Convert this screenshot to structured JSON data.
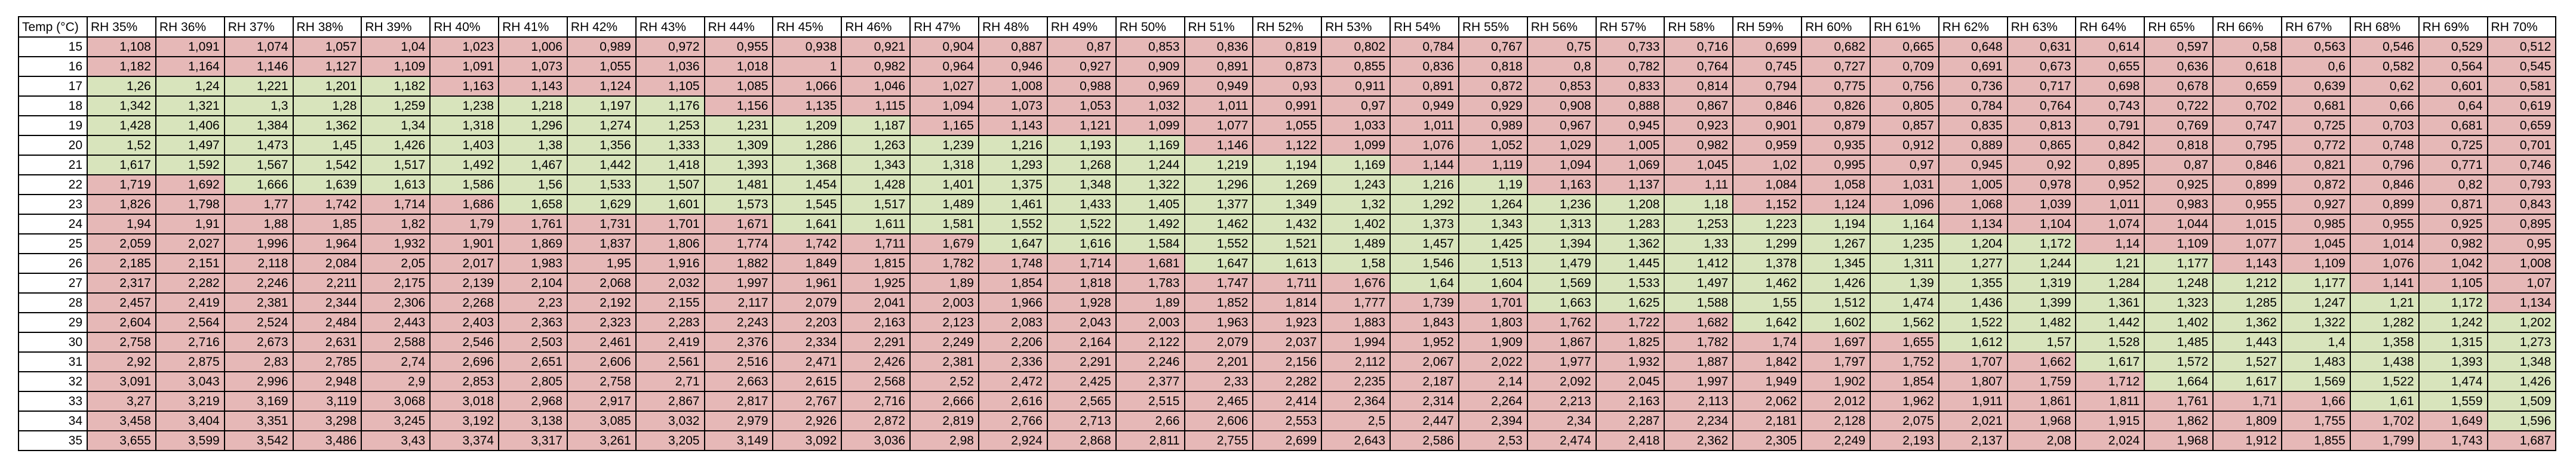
{
  "table": {
    "corner_header": "Temp (°C)",
    "temps": [
      "15",
      "16",
      "17",
      "18",
      "19",
      "20",
      "21",
      "22",
      "23",
      "24",
      "25",
      "26",
      "27",
      "28",
      "29",
      "30",
      "31",
      "32",
      "33",
      "34",
      "35"
    ],
    "columns": [
      {
        "rh": 35,
        "label": "RH 35%",
        "values": [
          "1,108",
          "1,182",
          "1,26",
          "1,342",
          "1,428",
          "1,52",
          "1,617",
          "1,719",
          "1,826",
          "1,94",
          "2,059",
          "2,185",
          "2,317",
          "2,457",
          "2,604",
          "2,758",
          "2,92",
          "3,091",
          "3,27",
          "3,458",
          "3,655"
        ]
      },
      {
        "rh": 36,
        "label": "RH 36%",
        "values": [
          "1,091",
          "1,164",
          "1,24",
          "1,321",
          "1,406",
          "1,497",
          "1,592",
          "1,692",
          "1,798",
          "1,91",
          "2,027",
          "2,151",
          "2,282",
          "2,419",
          "2,564",
          "2,716",
          "2,875",
          "3,043",
          "3,219",
          "3,404",
          "3,599"
        ]
      },
      {
        "rh": 37,
        "label": "RH 37%",
        "values": [
          "1,074",
          "1,146",
          "1,221",
          "1,3",
          "1,384",
          "1,473",
          "1,567",
          "1,666",
          "1,77",
          "1,88",
          "1,996",
          "2,118",
          "2,246",
          "2,381",
          "2,524",
          "2,673",
          "2,83",
          "2,996",
          "3,169",
          "3,351",
          "3,542"
        ]
      },
      {
        "rh": 38,
        "label": "RH 38%",
        "values": [
          "1,057",
          "1,127",
          "1,201",
          "1,28",
          "1,362",
          "1,45",
          "1,542",
          "1,639",
          "1,742",
          "1,85",
          "1,964",
          "2,084",
          "2,211",
          "2,344",
          "2,484",
          "2,631",
          "2,785",
          "2,948",
          "3,119",
          "3,298",
          "3,486"
        ]
      },
      {
        "rh": 39,
        "label": "RH 39%",
        "values": [
          "1,04",
          "1,109",
          "1,182",
          "1,259",
          "1,34",
          "1,426",
          "1,517",
          "1,613",
          "1,714",
          "1,82",
          "1,932",
          "2,05",
          "2,175",
          "2,306",
          "2,443",
          "2,588",
          "2,74",
          "2,9",
          "3,068",
          "3,245",
          "3,43"
        ]
      },
      {
        "rh": 40,
        "label": "RH 40%",
        "values": [
          "1,023",
          "1,091",
          "1,163",
          "1,238",
          "1,318",
          "1,403",
          "1,492",
          "1,586",
          "1,686",
          "1,79",
          "1,901",
          "2,017",
          "2,139",
          "2,268",
          "2,403",
          "2,546",
          "2,696",
          "2,853",
          "3,018",
          "3,192",
          "3,374"
        ]
      },
      {
        "rh": 41,
        "label": "RH 41%",
        "values": [
          "1,006",
          "1,073",
          "1,143",
          "1,218",
          "1,296",
          "1,38",
          "1,467",
          "1,56",
          "1,658",
          "1,761",
          "1,869",
          "1,983",
          "2,104",
          "2,23",
          "2,363",
          "2,503",
          "2,651",
          "2,805",
          "2,968",
          "3,138",
          "3,317"
        ]
      },
      {
        "rh": 42,
        "label": "RH 42%",
        "values": [
          "0,989",
          "1,055",
          "1,124",
          "1,197",
          "1,274",
          "1,356",
          "1,442",
          "1,533",
          "1,629",
          "1,731",
          "1,837",
          "1,95",
          "2,068",
          "2,192",
          "2,323",
          "2,461",
          "2,606",
          "2,758",
          "2,917",
          "3,085",
          "3,261"
        ]
      },
      {
        "rh": 43,
        "label": "RH 43%",
        "values": [
          "0,972",
          "1,036",
          "1,105",
          "1,176",
          "1,253",
          "1,333",
          "1,418",
          "1,507",
          "1,601",
          "1,701",
          "1,806",
          "1,916",
          "2,032",
          "2,155",
          "2,283",
          "2,419",
          "2,561",
          "2,71",
          "2,867",
          "3,032",
          "3,205"
        ]
      },
      {
        "rh": 44,
        "label": "RH 44%",
        "values": [
          "0,955",
          "1,018",
          "1,085",
          "1,156",
          "1,231",
          "1,309",
          "1,393",
          "1,481",
          "1,573",
          "1,671",
          "1,774",
          "1,882",
          "1,997",
          "2,117",
          "2,243",
          "2,376",
          "2,516",
          "2,663",
          "2,817",
          "2,979",
          "3,149"
        ]
      },
      {
        "rh": 45,
        "label": "RH 45%",
        "values": [
          "0,938",
          "1",
          "1,066",
          "1,135",
          "1,209",
          "1,286",
          "1,368",
          "1,454",
          "1,545",
          "1,641",
          "1,742",
          "1,849",
          "1,961",
          "2,079",
          "2,203",
          "2,334",
          "2,471",
          "2,615",
          "2,767",
          "2,926",
          "3,092"
        ]
      },
      {
        "rh": 46,
        "label": "RH 46%",
        "values": [
          "0,921",
          "0,982",
          "1,046",
          "1,115",
          "1,187",
          "1,263",
          "1,343",
          "1,428",
          "1,517",
          "1,611",
          "1,711",
          "1,815",
          "1,925",
          "2,041",
          "2,163",
          "2,291",
          "2,426",
          "2,568",
          "2,716",
          "2,872",
          "3,036"
        ]
      },
      {
        "rh": 47,
        "label": "RH 47%",
        "values": [
          "0,904",
          "0,964",
          "1,027",
          "1,094",
          "1,165",
          "1,239",
          "1,318",
          "1,401",
          "1,489",
          "1,581",
          "1,679",
          "1,782",
          "1,89",
          "2,003",
          "2,123",
          "2,249",
          "2,381",
          "2,52",
          "2,666",
          "2,819",
          "2,98"
        ]
      },
      {
        "rh": 48,
        "label": "RH 48%",
        "values": [
          "0,887",
          "0,946",
          "1,008",
          "1,073",
          "1,143",
          "1,216",
          "1,293",
          "1,375",
          "1,461",
          "1,552",
          "1,647",
          "1,748",
          "1,854",
          "1,966",
          "2,083",
          "2,206",
          "2,336",
          "2,472",
          "2,616",
          "2,766",
          "2,924"
        ]
      },
      {
        "rh": 49,
        "label": "RH 49%",
        "values": [
          "0,87",
          "0,927",
          "0,988",
          "1,053",
          "1,121",
          "1,193",
          "1,268",
          "1,348",
          "1,433",
          "1,522",
          "1,616",
          "1,714",
          "1,818",
          "1,928",
          "2,043",
          "2,164",
          "2,291",
          "2,425",
          "2,565",
          "2,713",
          "2,868"
        ]
      },
      {
        "rh": 50,
        "label": "RH 50%",
        "values": [
          "0,853",
          "0,909",
          "0,969",
          "1,032",
          "1,099",
          "1,169",
          "1,244",
          "1,322",
          "1,405",
          "1,492",
          "1,584",
          "1,681",
          "1,783",
          "1,89",
          "2,003",
          "2,122",
          "2,246",
          "2,377",
          "2,515",
          "2,66",
          "2,811"
        ]
      },
      {
        "rh": 51,
        "label": "RH 51%",
        "values": [
          "0,836",
          "0,891",
          "0,949",
          "1,011",
          "1,077",
          "1,146",
          "1,219",
          "1,296",
          "1,377",
          "1,462",
          "1,552",
          "1,647",
          "1,747",
          "1,852",
          "1,963",
          "2,079",
          "2,201",
          "2,33",
          "2,465",
          "2,606",
          "2,755"
        ]
      },
      {
        "rh": 52,
        "label": "RH 52%",
        "values": [
          "0,819",
          "0,873",
          "0,93",
          "0,991",
          "1,055",
          "1,122",
          "1,194",
          "1,269",
          "1,349",
          "1,432",
          "1,521",
          "1,613",
          "1,711",
          "1,814",
          "1,923",
          "2,037",
          "2,156",
          "2,282",
          "2,414",
          "2,553",
          "2,699"
        ]
      },
      {
        "rh": 53,
        "label": "RH 53%",
        "values": [
          "0,802",
          "0,855",
          "0,911",
          "0,97",
          "1,033",
          "1,099",
          "1,169",
          "1,243",
          "1,32",
          "1,402",
          "1,489",
          "1,58",
          "1,676",
          "1,777",
          "1,883",
          "1,994",
          "2,112",
          "2,235",
          "2,364",
          "2,5",
          "2,643"
        ]
      },
      {
        "rh": 54,
        "label": "RH 54%",
        "values": [
          "0,784",
          "0,836",
          "0,891",
          "0,949",
          "1,011",
          "1,076",
          "1,144",
          "1,216",
          "1,292",
          "1,373",
          "1,457",
          "1,546",
          "1,64",
          "1,739",
          "1,843",
          "1,952",
          "2,067",
          "2,187",
          "2,314",
          "2,447",
          "2,586"
        ]
      },
      {
        "rh": 55,
        "label": "RH 55%",
        "values": [
          "0,767",
          "0,818",
          "0,872",
          "0,929",
          "0,989",
          "1,052",
          "1,119",
          "1,19",
          "1,264",
          "1,343",
          "1,425",
          "1,513",
          "1,604",
          "1,701",
          "1,803",
          "1,909",
          "2,022",
          "2,14",
          "2,264",
          "2,394",
          "2,53"
        ]
      },
      {
        "rh": 56,
        "label": "RH 56%",
        "values": [
          "0,75",
          "0,8",
          "0,853",
          "0,908",
          "0,967",
          "1,029",
          "1,094",
          "1,163",
          "1,236",
          "1,313",
          "1,394",
          "1,479",
          "1,569",
          "1,663",
          "1,762",
          "1,867",
          "1,977",
          "2,092",
          "2,213",
          "2,34",
          "2,474"
        ]
      },
      {
        "rh": 57,
        "label": "RH 57%",
        "values": [
          "0,733",
          "0,782",
          "0,833",
          "0,888",
          "0,945",
          "1,005",
          "1,069",
          "1,137",
          "1,208",
          "1,283",
          "1,362",
          "1,445",
          "1,533",
          "1,625",
          "1,722",
          "1,825",
          "1,932",
          "2,045",
          "2,163",
          "2,287",
          "2,418"
        ]
      },
      {
        "rh": 58,
        "label": "RH 58%",
        "values": [
          "0,716",
          "0,764",
          "0,814",
          "0,867",
          "0,923",
          "0,982",
          "1,045",
          "1,11",
          "1,18",
          "1,253",
          "1,33",
          "1,412",
          "1,497",
          "1,588",
          "1,682",
          "1,782",
          "1,887",
          "1,997",
          "2,113",
          "2,234",
          "2,362"
        ]
      },
      {
        "rh": 59,
        "label": "RH 59%",
        "values": [
          "0,699",
          "0,745",
          "0,794",
          "0,846",
          "0,901",
          "0,959",
          "1,02",
          "1,084",
          "1,152",
          "1,223",
          "1,299",
          "1,378",
          "1,462",
          "1,55",
          "1,642",
          "1,74",
          "1,842",
          "1,949",
          "2,062",
          "2,181",
          "2,305"
        ]
      },
      {
        "rh": 60,
        "label": "RH 60%",
        "values": [
          "0,682",
          "0,727",
          "0,775",
          "0,826",
          "0,879",
          "0,935",
          "0,995",
          "1,058",
          "1,124",
          "1,194",
          "1,267",
          "1,345",
          "1,426",
          "1,512",
          "1,602",
          "1,697",
          "1,797",
          "1,902",
          "2,012",
          "2,128",
          "2,249"
        ]
      },
      {
        "rh": 61,
        "label": "RH 61%",
        "values": [
          "0,665",
          "0,709",
          "0,756",
          "0,805",
          "0,857",
          "0,912",
          "0,97",
          "1,031",
          "1,096",
          "1,164",
          "1,235",
          "1,311",
          "1,39",
          "1,474",
          "1,562",
          "1,655",
          "1,752",
          "1,854",
          "1,962",
          "2,075",
          "2,193"
        ]
      },
      {
        "rh": 62,
        "label": "RH 62%",
        "values": [
          "0,648",
          "0,691",
          "0,736",
          "0,784",
          "0,835",
          "0,889",
          "0,945",
          "1,005",
          "1,068",
          "1,134",
          "1,204",
          "1,277",
          "1,355",
          "1,436",
          "1,522",
          "1,612",
          "1,707",
          "1,807",
          "1,911",
          "2,021",
          "2,137"
        ]
      },
      {
        "rh": 63,
        "label": "RH 63%",
        "values": [
          "0,631",
          "0,673",
          "0,717",
          "0,764",
          "0,813",
          "0,865",
          "0,92",
          "0,978",
          "1,039",
          "1,104",
          "1,172",
          "1,244",
          "1,319",
          "1,399",
          "1,482",
          "1,57",
          "1,662",
          "1,759",
          "1,861",
          "1,968",
          "2,08"
        ]
      },
      {
        "rh": 64,
        "label": "RH 64%",
        "values": [
          "0,614",
          "0,655",
          "0,698",
          "0,743",
          "0,791",
          "0,842",
          "0,895",
          "0,952",
          "1,011",
          "1,074",
          "1,14",
          "1,21",
          "1,284",
          "1,361",
          "1,442",
          "1,528",
          "1,617",
          "1,712",
          "1,811",
          "1,915",
          "2,024"
        ]
      },
      {
        "rh": 65,
        "label": "RH 65%",
        "values": [
          "0,597",
          "0,636",
          "0,678",
          "0,722",
          "0,769",
          "0,818",
          "0,87",
          "0,925",
          "0,983",
          "1,044",
          "1,109",
          "1,177",
          "1,248",
          "1,323",
          "1,402",
          "1,485",
          "1,572",
          "1,664",
          "1,761",
          "1,862",
          "1,968"
        ]
      },
      {
        "rh": 66,
        "label": "RH 66%",
        "values": [
          "0,58",
          "0,618",
          "0,659",
          "0,702",
          "0,747",
          "0,795",
          "0,846",
          "0,899",
          "0,955",
          "1,015",
          "1,077",
          "1,143",
          "1,212",
          "1,285",
          "1,362",
          "1,443",
          "1,527",
          "1,617",
          "1,71",
          "1,809",
          "1,912"
        ]
      },
      {
        "rh": 67,
        "label": "RH 67%",
        "values": [
          "0,563",
          "0,6",
          "0,639",
          "0,681",
          "0,725",
          "0,772",
          "0,821",
          "0,872",
          "0,927",
          "0,985",
          "1,045",
          "1,109",
          "1,177",
          "1,247",
          "1,322",
          "1,4",
          "1,483",
          "1,569",
          "1,66",
          "1,755",
          "1,855"
        ]
      },
      {
        "rh": 68,
        "label": "RH 68%",
        "values": [
          "0,546",
          "0,582",
          "0,62",
          "0,66",
          "0,703",
          "0,748",
          "0,796",
          "0,846",
          "0,899",
          "0,955",
          "1,014",
          "1,076",
          "1,141",
          "1,21",
          "1,282",
          "1,358",
          "1,438",
          "1,522",
          "1,61",
          "1,702",
          "1,799"
        ]
      },
      {
        "rh": 69,
        "label": "RH 69%",
        "values": [
          "0,529",
          "0,564",
          "0,601",
          "0,64",
          "0,681",
          "0,725",
          "0,771",
          "0,82",
          "0,871",
          "0,925",
          "0,982",
          "1,042",
          "1,105",
          "1,172",
          "1,242",
          "1,315",
          "1,393",
          "1,474",
          "1,559",
          "1,649",
          "1,743"
        ]
      },
      {
        "rh": 70,
        "label": "RH 70%",
        "values": [
          "0,512",
          "0,545",
          "0,581",
          "0,619",
          "0,659",
          "0,701",
          "0,746",
          "0,793",
          "0,843",
          "0,895",
          "0,95",
          "1,008",
          "1,07",
          "1,134",
          "1,202",
          "1,273",
          "1,348",
          "1,426",
          "1,509",
          "1,596",
          "1,687"
        ]
      }
    ],
    "highlight": {
      "in_range_color": "#d8e4bc",
      "out_of_range_color": "#e6b8b7",
      "in_range_rh_by_temp": {
        "15": null,
        "16": null,
        "17": [
          35,
          39
        ],
        "18": [
          35,
          43
        ],
        "19": [
          35,
          46
        ],
        "20": [
          35,
          50
        ],
        "21": [
          35,
          53
        ],
        "22": [
          37,
          55
        ],
        "23": [
          41,
          58
        ],
        "24": [
          45,
          61
        ],
        "25": [
          48,
          63
        ],
        "26": [
          51,
          65
        ],
        "27": [
          54,
          67
        ],
        "28": [
          56,
          69
        ],
        "29": [
          59,
          70
        ],
        "30": [
          62,
          70
        ],
        "31": [
          64,
          70
        ],
        "32": [
          65,
          70
        ],
        "33": [
          68,
          70
        ],
        "34": [
          70,
          70
        ],
        "35": null
      }
    }
  }
}
